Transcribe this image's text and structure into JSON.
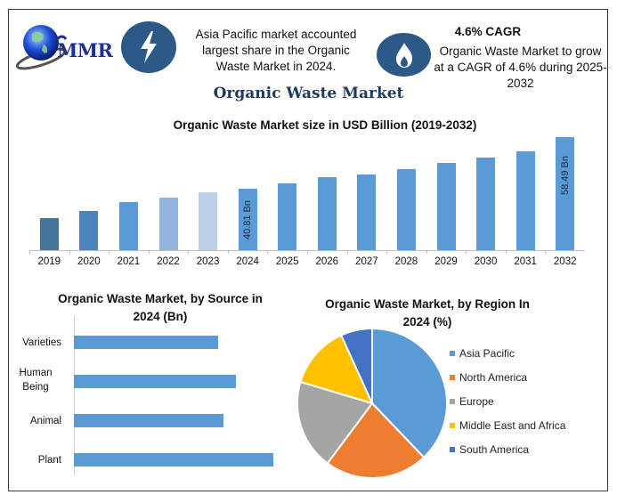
{
  "header": {
    "logo_text": "MMR",
    "stat1": {
      "icon": "lightning-bolt-icon",
      "text": "Asia Pacific market accounted largest share in the Organic Waste Market in 2024."
    },
    "stat2": {
      "icon": "flame-icon",
      "headline": "4.6% CAGR",
      "text": "Organic Waste Market to grow at a CAGR of 4.6% during 2025-2032"
    }
  },
  "main_title": "Organic Waste Market",
  "colors": {
    "frame": "#2f3b45",
    "icon_circle": "#2c5987",
    "title": "#1f3a60"
  },
  "chart_data": [
    {
      "type": "bar",
      "title": "Organic Waste Market size in USD Billion (2019-2032)",
      "xlabel": "",
      "ylabel": "",
      "categories": [
        "2019",
        "2020",
        "2021",
        "2022",
        "2023",
        "2024",
        "2025",
        "2026",
        "2027",
        "2028",
        "2029",
        "2030",
        "2031",
        "2032"
      ],
      "values": [
        31.0,
        33.4,
        36.3,
        38.0,
        39.8,
        40.81,
        42.7,
        44.7,
        45.7,
        47.7,
        49.7,
        51.5,
        53.5,
        58.49
      ],
      "data_labels": {
        "2024": "40.81 Bn",
        "2032": "58.49 Bn"
      },
      "bar_colors": [
        "#44729b",
        "#4d83bb",
        "#5b9bd5",
        "#91b4dc",
        "#bcd0ea",
        "#5b9bd5",
        "#5b9bd5",
        "#5b9bd5",
        "#5b9bd5",
        "#5b9bd5",
        "#5b9bd5",
        "#5b9bd5",
        "#5b9bd5",
        "#5b9bd5"
      ],
      "grid": false,
      "legend": "none"
    },
    {
      "type": "bar",
      "orientation": "horizontal",
      "title": "Organic Waste Market, by Source in 2024 (Bn)",
      "categories": [
        "Varieties",
        "Human Being",
        "Animal",
        "Plant"
      ],
      "values": [
        8.1,
        9.1,
        8.4,
        11.2
      ],
      "bar_color": "#5b9bd5",
      "grid": false,
      "legend": "none"
    },
    {
      "type": "pie",
      "title": "Organic Waste Market, by Region In 2024 (%)",
      "labels": [
        "Asia Pacific",
        "North America",
        "Europe",
        "Middle East and Africa",
        "South America"
      ],
      "values": [
        39,
        23,
        20,
        14,
        7
      ],
      "colors": [
        "#5b9bd5",
        "#ed7d31",
        "#a5a5a5",
        "#ffc000",
        "#4472c4"
      ],
      "legend_position": "right"
    }
  ]
}
